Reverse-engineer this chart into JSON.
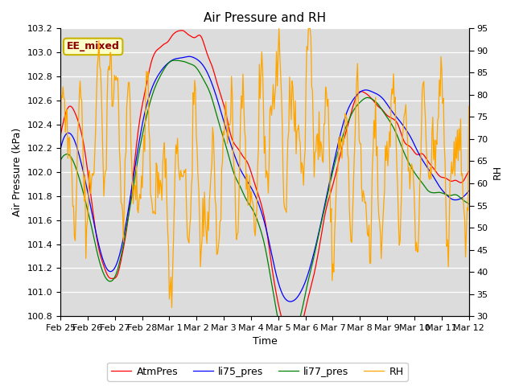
{
  "title": "Air Pressure and RH",
  "xlabel": "Time",
  "ylabel_left": "Air Pressure (kPa)",
  "ylabel_right": "RH",
  "ylim_left": [
    100.8,
    103.2
  ],
  "ylim_right": [
    30,
    95
  ],
  "yticks_left": [
    100.8,
    101.0,
    101.2,
    101.4,
    101.6,
    101.8,
    102.0,
    102.2,
    102.4,
    102.6,
    102.8,
    103.0,
    103.2
  ],
  "yticks_right": [
    30,
    35,
    40,
    45,
    50,
    55,
    60,
    65,
    70,
    75,
    80,
    85,
    90,
    95
  ],
  "xtick_labels": [
    "Feb 25",
    "Feb 26",
    "Feb 27",
    "Feb 28",
    "Mar 1",
    "Mar 2",
    "Mar 3",
    "Mar 4",
    "Mar 5",
    "Mar 6",
    "Mar 7",
    "Mar 8",
    "Mar 9",
    "Mar 10",
    "Mar 11",
    "Mar 12"
  ],
  "legend_labels": [
    "AtmPres",
    "li75_pres",
    "li77_pres",
    "RH"
  ],
  "line_colors": [
    "red",
    "blue",
    "green",
    "orange"
  ],
  "annotation_text": "EE_mixed",
  "annotation_color": "#8B0000",
  "annotation_bg": "#FFFFC8",
  "annotation_border": "#C8B400",
  "background_color": "#DCDCDC",
  "fig_facecolor": "#FFFFFF",
  "title_fontsize": 11,
  "axis_fontsize": 9,
  "tick_fontsize": 8,
  "legend_fontsize": 9,
  "n_points": 500
}
